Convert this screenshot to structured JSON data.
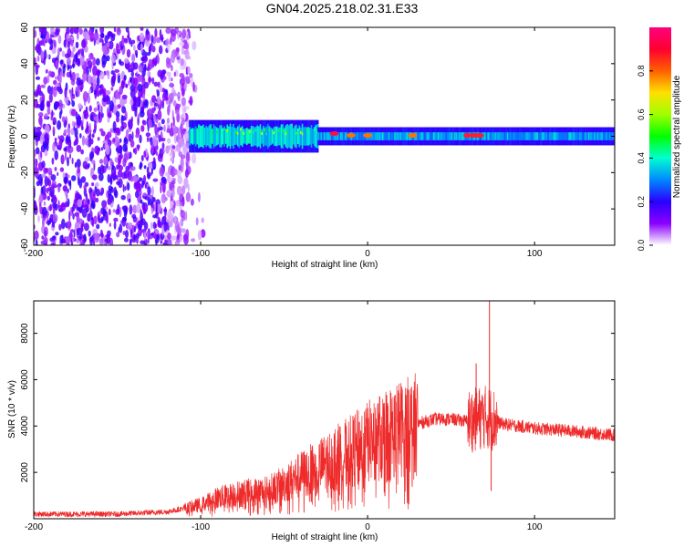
{
  "figure": {
    "title": "GN04.2025.218.02.31.E33"
  },
  "chart_data": [
    {
      "type": "heatmap",
      "xlabel": "Height of straight line (km)",
      "ylabel": "Frequency (Hz)",
      "xlim": [
        -200,
        148
      ],
      "ylim": [
        -60,
        60
      ],
      "xticks": [
        -200,
        -100,
        0,
        100
      ],
      "yticks": [
        -60,
        -40,
        -20,
        0,
        20,
        40,
        60
      ],
      "colorbar": {
        "label": "Normalized spectral amplitude",
        "range": [
          0.0,
          1.0
        ],
        "ticks": [
          0.0,
          0.2,
          0.4,
          0.6,
          0.8
        ],
        "tick_labels": [
          "0.0",
          "0.2",
          "0.4",
          "0.6",
          "0.8"
        ],
        "colormap": [
          "#ffffff",
          "#8a00ff",
          "#2a00ff",
          "#0088ff",
          "#00ffd0",
          "#00ff00",
          "#c8ff00",
          "#ffd000",
          "#ff4000",
          "#ff0050"
        ]
      },
      "regions": [
        {
          "x_range": [
            -200,
            -107
          ],
          "freq_range": [
            -60,
            60
          ],
          "amplitude": 0.12,
          "description_color": "#8a2be2"
        },
        {
          "x_range": [
            -107,
            -30
          ],
          "freq_range": [
            -9,
            9
          ],
          "amplitude": 0.35
        },
        {
          "x_range": [
            -30,
            148
          ],
          "freq_range": [
            -5,
            5
          ],
          "amplitude": 0.3
        }
      ],
      "hot_spots": [
        {
          "x": -20,
          "freq": 1.5,
          "amplitude": 0.98
        },
        {
          "x": -10,
          "freq": 0.5,
          "amplitude": 0.85
        },
        {
          "x": 0,
          "freq": 0.5,
          "amplitude": 0.85
        },
        {
          "x": 27,
          "freq": 0.5,
          "amplitude": 0.85
        },
        {
          "x": 60,
          "freq": 0.5,
          "amplitude": 0.95
        },
        {
          "x": 64,
          "freq": 0.5,
          "amplitude": 0.95
        },
        {
          "x": 67,
          "freq": 0.5,
          "amplitude": 0.95
        }
      ]
    },
    {
      "type": "line",
      "xlabel": "Height of straight line (km)",
      "ylabel": "SNR (10 * v/v)",
      "xlim": [
        -200,
        148
      ],
      "ylim": [
        0,
        9400
      ],
      "xticks": [
        -200,
        -100,
        0,
        100
      ],
      "yticks": [
        2000,
        4000,
        6000,
        8000
      ],
      "color": "#ee2a2a",
      "series": [
        {
          "x": [
            -200,
            -150,
            -120,
            -100,
            -90,
            -75,
            -60,
            -50,
            -40,
            -30,
            -20,
            -10,
            0,
            10,
            20,
            30,
            40,
            50,
            60,
            65,
            70,
            75,
            80,
            90,
            100,
            120,
            148
          ],
          "values": [
            200,
            200,
            300,
            600,
            900,
            1100,
            1200,
            1500,
            1900,
            2200,
            2600,
            2900,
            3300,
            3600,
            3900,
            4100,
            4300,
            4300,
            4200,
            4300,
            4400,
            4300,
            4100,
            4000,
            3900,
            3800,
            3600
          ]
        }
      ],
      "peaks": [
        {
          "x": 65,
          "value": 6700
        },
        {
          "x": 73,
          "value": 9400
        },
        {
          "x": 74,
          "value": 1200
        }
      ]
    }
  ]
}
